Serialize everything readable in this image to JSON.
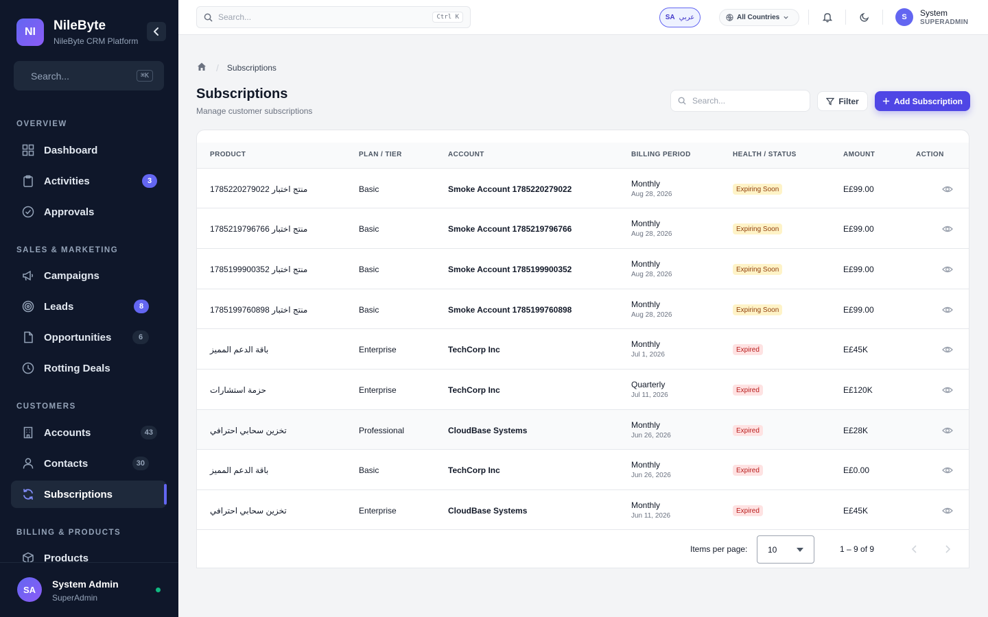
{
  "brand": {
    "logo": "NI",
    "name": "NileByte",
    "subtitle": "NileByte CRM Platform"
  },
  "sidebar": {
    "search_placeholder": "Search...",
    "search_shortcut": "⌘K",
    "sections": {
      "overview": "OVERVIEW",
      "sales": "SALES & MARKETING",
      "customers": "CUSTOMERS",
      "billing": "BILLING & PRODUCTS"
    },
    "items": {
      "dashboard": {
        "label": "Dashboard",
        "icon": "grid-icon"
      },
      "activities": {
        "label": "Activities",
        "icon": "clipboard-icon",
        "badge": "3"
      },
      "approvals": {
        "label": "Approvals",
        "icon": "check-circle-icon"
      },
      "campaigns": {
        "label": "Campaigns",
        "icon": "megaphone-icon"
      },
      "leads": {
        "label": "Leads",
        "icon": "target-icon",
        "badge": "8"
      },
      "opportunities": {
        "label": "Opportunities",
        "icon": "file-icon",
        "badge": "6"
      },
      "rotting": {
        "label": "Rotting Deals",
        "icon": "clock-icon"
      },
      "accounts": {
        "label": "Accounts",
        "icon": "building-icon",
        "badge": "43"
      },
      "contacts": {
        "label": "Contacts",
        "icon": "user-icon",
        "badge": "30"
      },
      "subscriptions": {
        "label": "Subscriptions",
        "icon": "refresh-icon"
      },
      "products": {
        "label": "Products",
        "icon": "box-icon"
      }
    },
    "user": {
      "initials": "SA",
      "name": "System Admin",
      "role": "SuperAdmin"
    }
  },
  "topbar": {
    "search_placeholder": "Search...",
    "search_shortcut": "Ctrl K",
    "lang_code": "SA",
    "lang_label": "عربي",
    "country": "All Countries",
    "user_initial": "S",
    "user_name": "System",
    "user_role": "SUPERADMIN"
  },
  "breadcrumb": {
    "current": "Subscriptions"
  },
  "page": {
    "title": "Subscriptions",
    "subtitle": "Manage customer subscriptions",
    "search_placeholder": "Search...",
    "filter_label": "Filter",
    "add_label": "Add Subscription"
  },
  "table": {
    "columns": [
      "PRODUCT",
      "PLAN / TIER",
      "ACCOUNT",
      "BILLING PERIOD",
      "HEALTH / STATUS",
      "AMOUNT",
      "ACTION"
    ],
    "rows": [
      {
        "product": "منتج اختبار 1785220279022",
        "plan": "Basic",
        "account": "Smoke Account 1785220279022",
        "period": "Monthly",
        "date": "Aug 28, 2026",
        "status": "Expiring Soon",
        "status_type": "warn",
        "amount": "E£99.00"
      },
      {
        "product": "منتج اختبار 1785219796766",
        "plan": "Basic",
        "account": "Smoke Account 1785219796766",
        "period": "Monthly",
        "date": "Aug 28, 2026",
        "status": "Expiring Soon",
        "status_type": "warn",
        "amount": "E£99.00"
      },
      {
        "product": "منتج اختبار 1785199900352",
        "plan": "Basic",
        "account": "Smoke Account 1785199900352",
        "period": "Monthly",
        "date": "Aug 28, 2026",
        "status": "Expiring Soon",
        "status_type": "warn",
        "amount": "E£99.00"
      },
      {
        "product": "منتج اختبار 1785199760898",
        "plan": "Basic",
        "account": "Smoke Account 1785199760898",
        "period": "Monthly",
        "date": "Aug 28, 2026",
        "status": "Expiring Soon",
        "status_type": "warn",
        "amount": "E£99.00"
      },
      {
        "product": "باقة الدعم المميز",
        "plan": "Enterprise",
        "account": "TechCorp Inc",
        "period": "Monthly",
        "date": "Jul 1, 2026",
        "status": "Expired",
        "status_type": "bad",
        "amount": "E£45K"
      },
      {
        "product": "حزمة استشارات",
        "plan": "Enterprise",
        "account": "TechCorp Inc",
        "period": "Quarterly",
        "date": "Jul 11, 2026",
        "status": "Expired",
        "status_type": "bad",
        "amount": "E£120K"
      },
      {
        "product": "تخزين سحابي احترافي",
        "plan": "Professional",
        "account": "CloudBase Systems",
        "period": "Monthly",
        "date": "Jun 26, 2026",
        "status": "Expired",
        "status_type": "bad",
        "amount": "E£28K"
      },
      {
        "product": "باقة الدعم المميز",
        "plan": "Basic",
        "account": "TechCorp Inc",
        "period": "Monthly",
        "date": "Jun 26, 2026",
        "status": "Expired",
        "status_type": "bad",
        "amount": "E£0.00"
      },
      {
        "product": "تخزين سحابي احترافي",
        "plan": "Enterprise",
        "account": "CloudBase Systems",
        "period": "Monthly",
        "date": "Jun 11, 2026",
        "status": "Expired",
        "status_type": "bad",
        "amount": "E£45K"
      }
    ]
  },
  "pagination": {
    "items_label": "Items per page:",
    "page_size": "10",
    "range": "1 – 9 of 9"
  },
  "colors": {
    "sidebar_bg": "#0f172a",
    "accent": "#4f46e5",
    "warn_bg": "#fef3c7",
    "expired_bg": "#fee2e2"
  }
}
